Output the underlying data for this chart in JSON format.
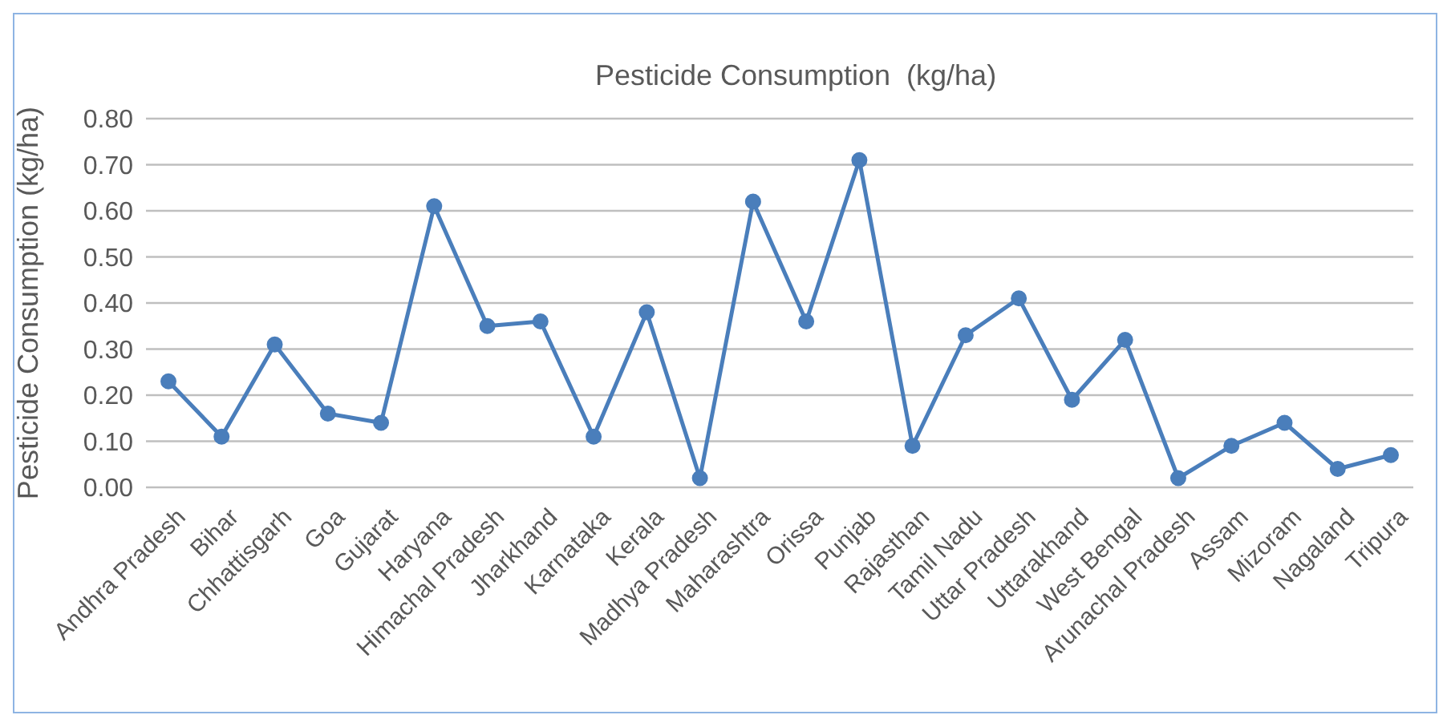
{
  "chart_data": {
    "type": "line",
    "title": "Pesticide Consumption  (kg/ha)",
    "ylabel": "Pesticide Consumption  (kg/ha)",
    "categories": [
      "Andhra Pradesh",
      "Bihar",
      "Chhattisgarh",
      "Goa",
      "Gujarat",
      "Haryana",
      "Himachal Pradesh",
      "Jharkhand",
      "Karnataka",
      "Kerala",
      "Madhya Pradesh",
      "Maharashtra",
      "Orissa",
      "Punjab",
      "Rajasthan",
      "Tamil Nadu",
      "Uttar Pradesh",
      "Uttarakhand",
      "West Bengal",
      "Arunachal Pradesh",
      "Assam",
      "Mizoram",
      "Nagaland",
      "Tripura"
    ],
    "values": [
      0.23,
      0.11,
      0.31,
      0.16,
      0.14,
      0.61,
      0.35,
      0.36,
      0.11,
      0.38,
      0.02,
      0.62,
      0.36,
      0.71,
      0.09,
      0.33,
      0.41,
      0.19,
      0.32,
      0.02,
      0.09,
      0.14,
      0.04,
      0.07
    ],
    "color": "#4a7ebb",
    "ylim": [
      0,
      0.8
    ],
    "yticks": [
      {
        "value": 0,
        "label": "0.00"
      },
      {
        "value": 0.1,
        "label": "0.10"
      },
      {
        "value": 0.2,
        "label": "0.20"
      },
      {
        "value": 0.3,
        "label": "0.30"
      },
      {
        "value": 0.4,
        "label": "0.40"
      },
      {
        "value": 0.5,
        "label": "0.50"
      },
      {
        "value": 0.6,
        "label": "0.60"
      },
      {
        "value": 0.7,
        "label": "0.70"
      },
      {
        "value": 0.8,
        "label": "0.80"
      }
    ],
    "grid": "y",
    "marker": "circle",
    "line_style": "solid"
  }
}
